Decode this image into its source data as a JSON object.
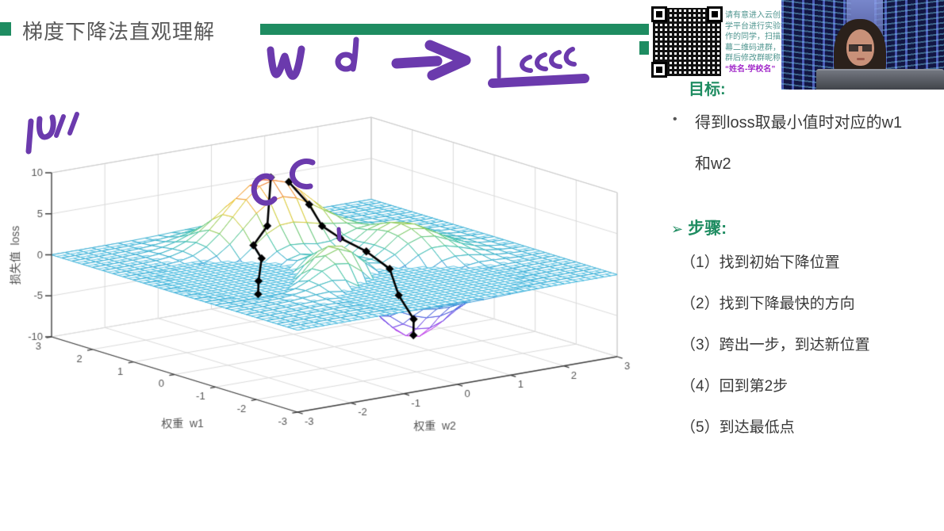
{
  "header": {
    "title": "梯度下降法直观理解"
  },
  "qr_panel": {
    "notice_lines": [
      "请有意进入云创大",
      "学平台进行实验操",
      "作的同学，扫描屏",
      "幕二维码进群，进",
      "群后修改群昵称为",
      "“姓名-学校名”"
    ]
  },
  "right_panel": {
    "goal_heading": "目标:",
    "bullet": {
      "line1": "得到loss取最小值时对应的w1",
      "line2": "和w2"
    },
    "steps_arrow": "➢",
    "steps_heading": "步骤:",
    "steps": [
      "（1）找到初始下降位置",
      "（2）找到下降最快的方向",
      "（3）跨出一步，到达新位置",
      "（4）回到第2步",
      "（5）到达最低点"
    ]
  },
  "chart_data": {
    "type": "surface3d-mesh",
    "title": "",
    "function": "loss = peaks(w2,w1) = 3(1-x)^2·e^(-x^2-(y+1)^2) - 10(x/5 - x^3 - y^5)·e^(-x^2-y^2) - (1/3)·e^(-(x+1)^2-y^2)",
    "w2_axis": {
      "label": "权重  w2",
      "range": [
        -3,
        3
      ],
      "ticks": [
        -3,
        -2,
        -1,
        0,
        1,
        2,
        3
      ]
    },
    "w1_axis": {
      "label": "权重  w1",
      "range": [
        -3,
        3
      ],
      "ticks": [
        3,
        2,
        1,
        0,
        -1,
        -2,
        -3
      ]
    },
    "z_axis": {
      "label": "损失值  loss",
      "range": [
        -10,
        10
      ],
      "ticks": [
        10,
        5,
        0,
        -5,
        -10
      ]
    },
    "surface": {
      "grid_step": 0.25
    },
    "zero_plane": {
      "z": 0,
      "grid_step": 0.125,
      "color": "#35b4dc"
    },
    "colormap": [
      [
        0.0,
        "#e83ae0"
      ],
      [
        0.1,
        "#a13cec"
      ],
      [
        0.22,
        "#5a4ae4"
      ],
      [
        0.33,
        "#3f6fdc"
      ],
      [
        0.44,
        "#3aaed6"
      ],
      [
        0.54,
        "#3fc4a8"
      ],
      [
        0.64,
        "#7ecb66"
      ],
      [
        0.74,
        "#ccd13e"
      ],
      [
        0.84,
        "#f2c436"
      ],
      [
        0.92,
        "#f3932e"
      ],
      [
        1.0,
        "#e8402a"
      ]
    ],
    "grid_color": "#dadada",
    "axis_color": "#3c3c3c",
    "tick_label_color": "#555555",
    "descent_paths": [
      {
        "name": "left-descent-path",
        "color": "#000000",
        "points_w1_w2": [
          [
            1.55,
            0
          ],
          [
            1.05,
            -0.45
          ],
          [
            1.0,
            -0.75
          ],
          [
            0.8,
            -0.75
          ],
          [
            0.55,
            -1.0
          ],
          [
            0.3,
            -1.2
          ]
        ]
      },
      {
        "name": "right-descent-path",
        "color": "#000000",
        "points_w1_w2": [
          [
            1.5,
            0.3
          ],
          [
            1.2,
            0.45
          ],
          [
            0.95,
            0.5
          ],
          [
            0.7,
            0.65
          ],
          [
            0.0,
            0.6
          ],
          [
            -0.7,
            0.5
          ],
          [
            -1.05,
            0.4
          ],
          [
            -1.35,
            0.45
          ],
          [
            -1.63,
            0.23
          ]
        ]
      }
    ]
  }
}
